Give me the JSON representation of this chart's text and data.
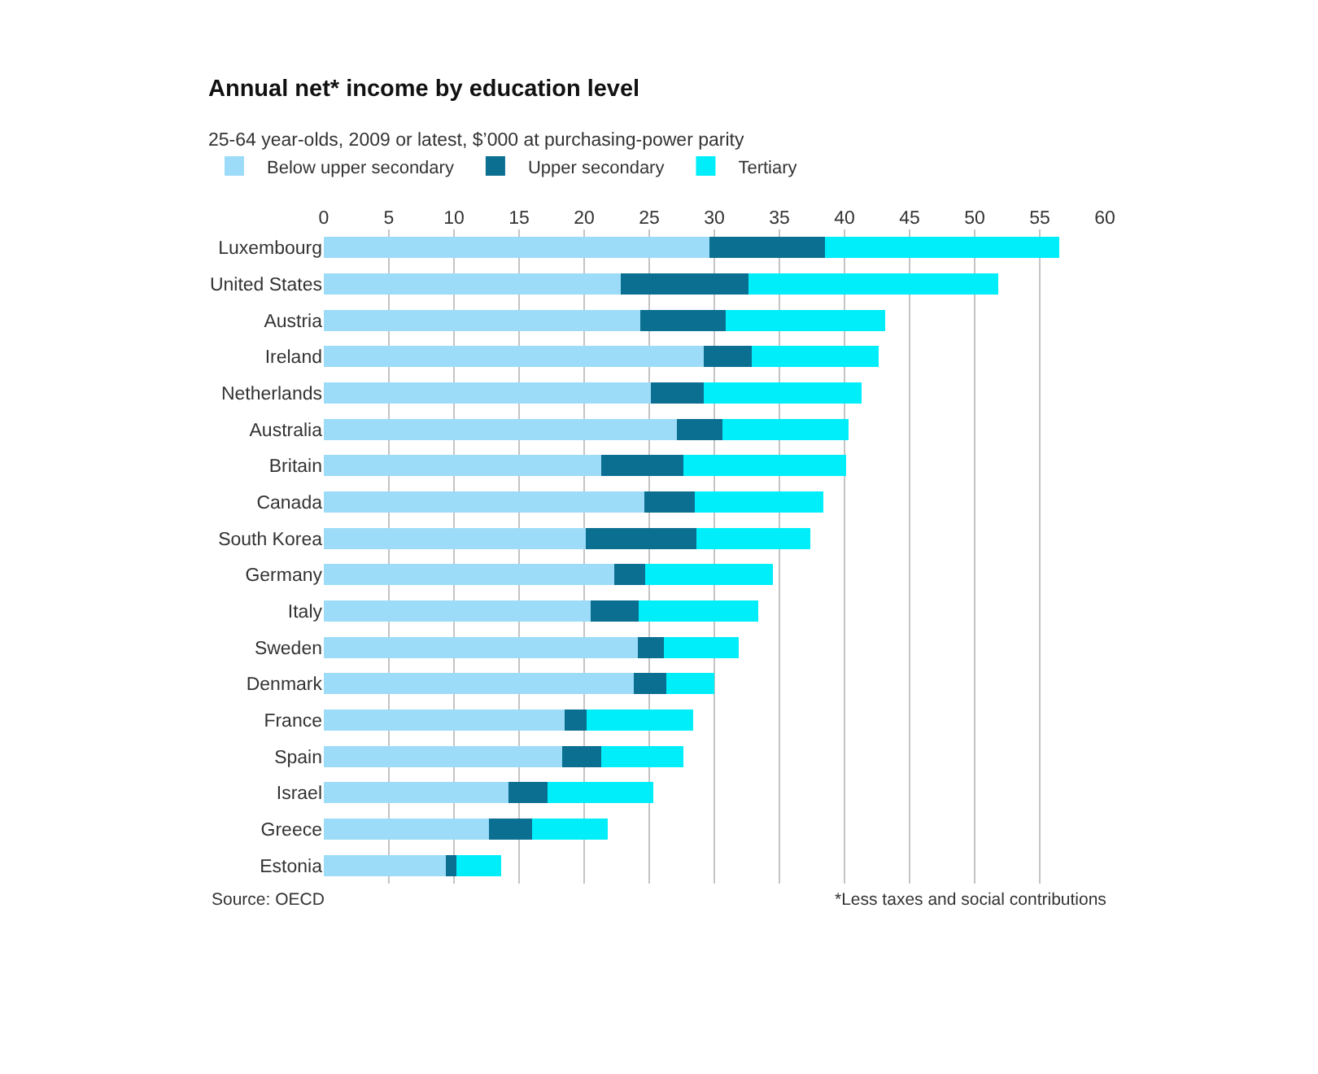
{
  "chart_data": {
    "type": "bar",
    "orientation": "horizontal",
    "stacked": true,
    "title": "Annual net* income by education level",
    "subtitle": "25-64 year-olds, 2009 or latest, $’000 at purchasing-power parity",
    "categories": [
      "Luxembourg",
      "United States",
      "Austria",
      "Ireland",
      "Netherlands",
      "Australia",
      "Britain",
      "Canada",
      "South Korea",
      "Germany",
      "Italy",
      "Sweden",
      "Denmark",
      "France",
      "Spain",
      "Israel",
      "Greece",
      "Estonia"
    ],
    "series": [
      {
        "name": "Below upper secondary",
        "color": "#9ddcf9",
        "values": [
          29.6,
          22.8,
          24.3,
          29.2,
          25.1,
          27.1,
          21.3,
          24.6,
          20.1,
          22.3,
          20.5,
          24.1,
          23.8,
          18.5,
          18.3,
          14.2,
          12.7,
          9.4
        ]
      },
      {
        "name": "Upper secondary",
        "color": "#0b6f92",
        "values": [
          8.9,
          9.8,
          6.6,
          3.7,
          4.1,
          3.5,
          6.3,
          3.9,
          8.5,
          2.4,
          3.7,
          2.0,
          2.5,
          1.7,
          3.0,
          3.0,
          3.3,
          0.8
        ]
      },
      {
        "name": "Tertiary",
        "color": "#00eefa",
        "values": [
          18.0,
          19.2,
          12.2,
          9.7,
          12.1,
          9.7,
          12.5,
          9.9,
          8.8,
          9.8,
          9.2,
          5.8,
          3.7,
          8.2,
          6.3,
          8.1,
          5.8,
          3.4
        ]
      }
    ],
    "xlim": [
      0,
      60
    ],
    "xticks": [
      0,
      5,
      10,
      15,
      20,
      25,
      30,
      35,
      40,
      45,
      50,
      55,
      60
    ],
    "grid": "x",
    "legend": "top left",
    "annotations": [
      "Source: OECD",
      "*Less taxes and social contributions"
    ]
  }
}
